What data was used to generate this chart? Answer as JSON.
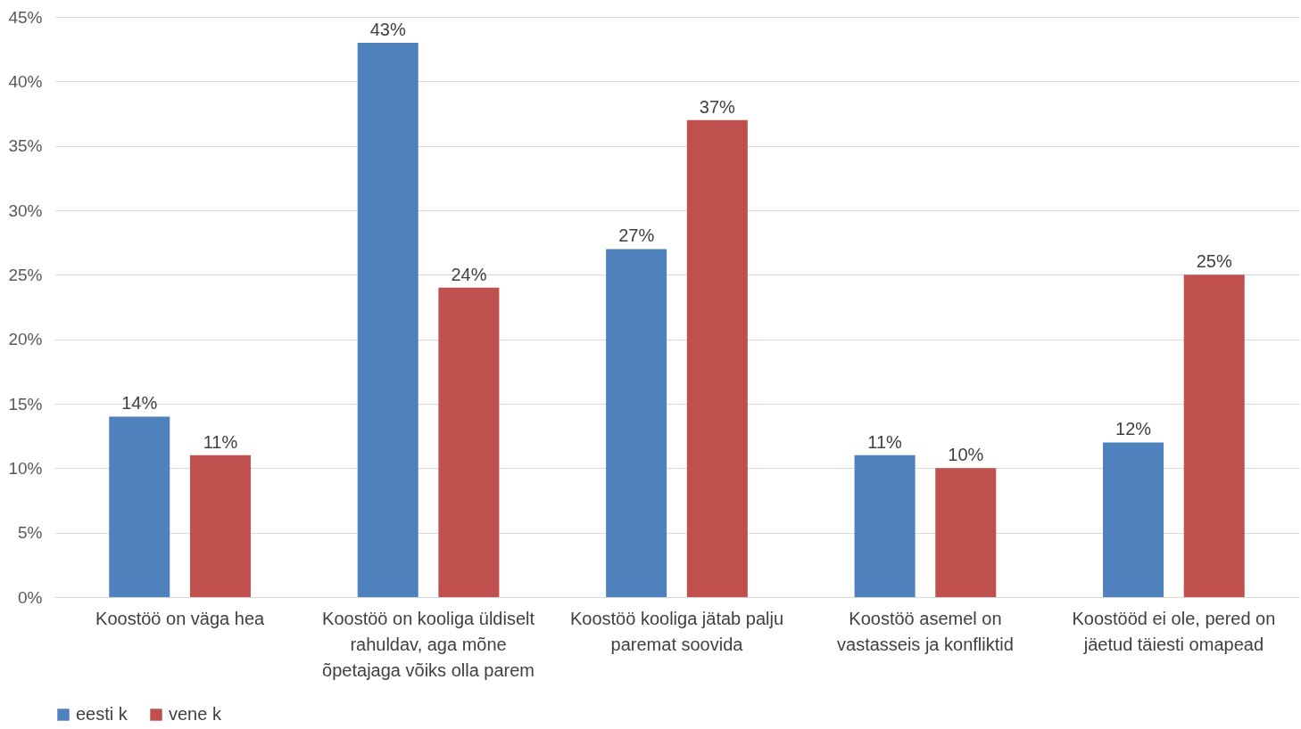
{
  "chart_data": {
    "type": "bar",
    "categories": [
      "Koostöö on väga hea",
      "Koostöö on kooliga üldiselt rahuldav, aga mõne õpetajaga võiks olla parem",
      "Koostöö kooliga jätab palju paremat soovida",
      "Koostöö asemel on vastasseis ja konfliktid",
      "Koostööd ei ole, pered on jäetud täiesti omapead"
    ],
    "series": [
      {
        "name": "eesti k",
        "color": "#4f81bd",
        "values": [
          14,
          43,
          27,
          11,
          12
        ],
        "value_labels": [
          "14%",
          "43%",
          "27%",
          "11%",
          "12%"
        ]
      },
      {
        "name": "vene k",
        "color": "#c0504d",
        "values": [
          11,
          24,
          37,
          10,
          25
        ],
        "value_labels": [
          "11%",
          "24%",
          "37%",
          "10%",
          "25%"
        ]
      }
    ],
    "ylim": [
      0,
      45
    ],
    "yticks": [
      {
        "value": 0,
        "label": "0%"
      },
      {
        "value": 5,
        "label": "5%"
      },
      {
        "value": 10,
        "label": "10%"
      },
      {
        "value": 15,
        "label": "15%"
      },
      {
        "value": 20,
        "label": "20%"
      },
      {
        "value": 25,
        "label": "25%"
      },
      {
        "value": 30,
        "label": "30%"
      },
      {
        "value": 35,
        "label": "35%"
      },
      {
        "value": 40,
        "label": "40%"
      },
      {
        "value": 45,
        "label": "45%"
      }
    ],
    "grid": "y",
    "legend": "bottom"
  }
}
